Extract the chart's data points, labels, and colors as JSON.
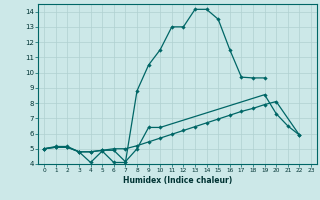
{
  "xlabel": "Humidex (Indice chaleur)",
  "bg_color": "#cce8e8",
  "grid_color": "#b0d0d0",
  "line_color": "#006666",
  "xlim": [
    -0.5,
    23.5
  ],
  "ylim": [
    4,
    14.5
  ],
  "yticks": [
    4,
    5,
    6,
    7,
    8,
    9,
    10,
    11,
    12,
    13,
    14
  ],
  "xticks": [
    0,
    1,
    2,
    3,
    4,
    5,
    6,
    7,
    8,
    9,
    10,
    11,
    12,
    13,
    14,
    15,
    16,
    17,
    18,
    19,
    20,
    21,
    22,
    23
  ],
  "curve1_x": [
    0,
    1,
    2,
    3,
    4,
    5,
    6,
    7,
    8,
    9,
    10,
    11,
    12,
    13,
    14,
    15,
    16,
    17,
    18,
    19
  ],
  "curve1_y": [
    5.0,
    5.1,
    5.1,
    4.8,
    4.1,
    4.85,
    4.1,
    4.1,
    8.8,
    10.5,
    11.5,
    13.0,
    13.0,
    14.15,
    14.15,
    13.5,
    11.5,
    9.7,
    9.65,
    9.65
  ],
  "curve2_x": [
    0,
    1,
    2,
    3,
    4,
    5,
    6,
    7,
    8,
    9,
    10,
    19,
    20,
    21,
    22
  ],
  "curve2_y": [
    5.0,
    5.1,
    5.1,
    4.8,
    4.8,
    4.9,
    4.9,
    4.15,
    5.0,
    6.4,
    6.4,
    8.55,
    7.3,
    6.5,
    5.9
  ],
  "curve3_x": [
    0,
    1,
    2,
    3,
    4,
    5,
    6,
    7,
    8,
    9,
    10,
    11,
    12,
    13,
    14,
    15,
    16,
    17,
    18,
    19,
    20,
    22
  ],
  "curve3_y": [
    5.0,
    5.15,
    5.15,
    4.8,
    4.8,
    4.9,
    5.0,
    5.0,
    5.2,
    5.45,
    5.7,
    5.95,
    6.2,
    6.45,
    6.7,
    6.95,
    7.2,
    7.45,
    7.65,
    7.9,
    8.1,
    5.9
  ]
}
